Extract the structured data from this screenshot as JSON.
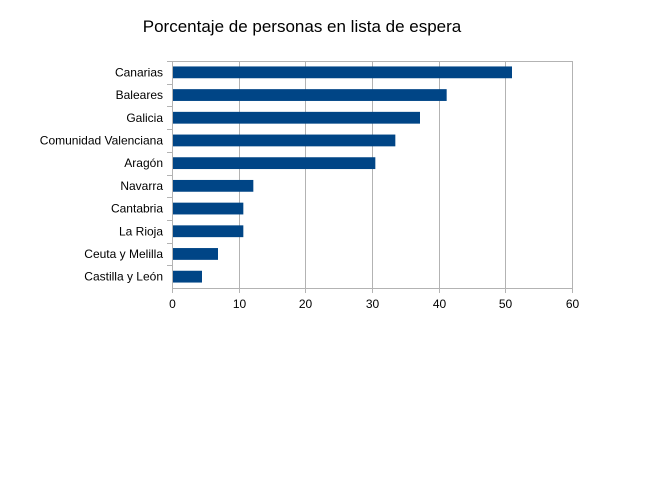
{
  "chart_data": {
    "type": "bar",
    "orientation": "horizontal",
    "title": "Porcentaje de personas en lista de espera",
    "xlabel": "",
    "ylabel": "",
    "categories": [
      "Canarias",
      "Baleares",
      "Galicia",
      "Comunidad Valenciana",
      "Aragón",
      "Navarra",
      "Cantabria",
      "La Rioja",
      "Ceuta y Melilla",
      "Castilla y León"
    ],
    "values": [
      51,
      41.2,
      37.2,
      33.5,
      30.5,
      12.2,
      10.7,
      10.7,
      6.9,
      4.5
    ],
    "xlim": [
      0,
      60
    ],
    "xticks": [
      0,
      10,
      20,
      30,
      40,
      50,
      60
    ],
    "xtick_labels": [
      "0",
      "10",
      "20",
      "30",
      "40",
      "50",
      "60"
    ],
    "grid": true,
    "legend": "none",
    "bar_color": "#004586",
    "grid_color": "#b3b3b3",
    "axis_color": "#b3b3b3"
  }
}
